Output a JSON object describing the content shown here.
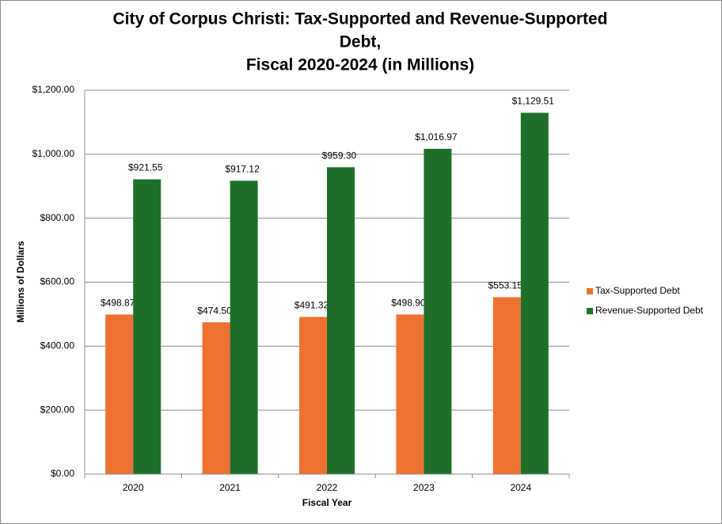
{
  "chart_data": {
    "type": "bar",
    "title": [
      "City of Corpus Christi: Tax-Supported and Revenue-Supported",
      "Debt,",
      "Fiscal 2020-2024 (in Millions)"
    ],
    "x_label": "Fiscal Year",
    "y_label": "Millions of Dollars",
    "categories": [
      "2020",
      "2021",
      "2022",
      "2023",
      "2024"
    ],
    "series": [
      {
        "name": "Tax-Supported Debt",
        "color": "#ed7232",
        "values": [
          498.87,
          474.5,
          491.32,
          498.9,
          553.15
        ],
        "value_labels": [
          "$498.87",
          "$474.50",
          "$491.32",
          "$498.90",
          "$553.15"
        ]
      },
      {
        "name": "Revenue-Supported Debt",
        "color": "#1e7029",
        "values": [
          921.55,
          917.12,
          959.3,
          1016.97,
          1129.51
        ],
        "value_labels": [
          "$921.55",
          "$917.12",
          "$959.30",
          "$1,016.97",
          "$1,129.51"
        ]
      }
    ],
    "ylim": [
      0,
      1200
    ],
    "yticks": [
      {
        "value": 0,
        "label": "$0.00"
      },
      {
        "value": 200,
        "label": "$200.00"
      },
      {
        "value": 400,
        "label": "$400.00"
      },
      {
        "value": 600,
        "label": "$600.00"
      },
      {
        "value": 800,
        "label": "$800.00"
      },
      {
        "value": 1000,
        "label": "$1,000.00"
      },
      {
        "value": 1200,
        "label": "$1,200.00"
      }
    ],
    "grid": true,
    "legend": "right"
  }
}
